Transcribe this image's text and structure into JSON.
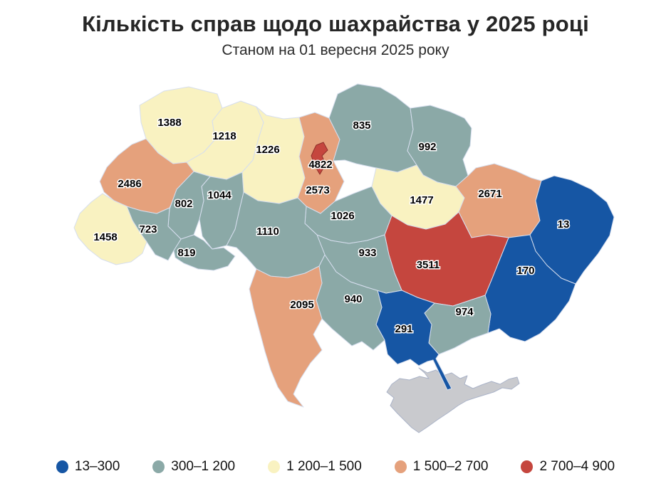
{
  "chart_data": {
    "type": "choropleth",
    "title": "Кількість справ щодо шахрайства у 2025 році",
    "subtitle": "Станом на 01 вересня 2025 року",
    "legend": [
      {
        "label": "13–300",
        "color": "#1656a4"
      },
      {
        "label": "300–1 200",
        "color": "#8ba9a7"
      },
      {
        "label": "1 200–1 500",
        "color": "#f9f2c1"
      },
      {
        "label": "1 500–2 700",
        "color": "#e5a17c"
      },
      {
        "label": "2 700–4 900",
        "color": "#c5463e"
      }
    ],
    "no_data_color": "#c9cace",
    "regions": [
      {
        "id": "volyn",
        "value": 1388,
        "bucket": 2
      },
      {
        "id": "rivne",
        "value": 1218,
        "bucket": 2
      },
      {
        "id": "zhytomyr",
        "value": 1226,
        "bucket": 2
      },
      {
        "id": "kyiv-oblast",
        "value": 2573,
        "bucket": 3
      },
      {
        "id": "kyiv-city",
        "value": 4822,
        "bucket": 4
      },
      {
        "id": "chernihiv",
        "value": 835,
        "bucket": 1
      },
      {
        "id": "sumy",
        "value": 992,
        "bucket": 1
      },
      {
        "id": "poltava",
        "value": 1477,
        "bucket": 2
      },
      {
        "id": "kharkiv",
        "value": 2671,
        "bucket": 3
      },
      {
        "id": "luhansk",
        "value": 13,
        "bucket": 0
      },
      {
        "id": "donetsk",
        "value": 170,
        "bucket": 0
      },
      {
        "id": "dnipropetrovsk",
        "value": 3511,
        "bucket": 4
      },
      {
        "id": "zaporizhzhia",
        "value": 974,
        "bucket": 1
      },
      {
        "id": "kherson",
        "value": 291,
        "bucket": 0
      },
      {
        "id": "mykolaiv",
        "value": 940,
        "bucket": 1
      },
      {
        "id": "odesa",
        "value": 2095,
        "bucket": 3
      },
      {
        "id": "kirovohrad",
        "value": 933,
        "bucket": 1
      },
      {
        "id": "cherkasy",
        "value": 1026,
        "bucket": 1
      },
      {
        "id": "vinnytsia",
        "value": 1110,
        "bucket": 1
      },
      {
        "id": "khmelnytskyi",
        "value": 1044,
        "bucket": 1
      },
      {
        "id": "ternopil",
        "value": 802,
        "bucket": 1
      },
      {
        "id": "chernivtsi",
        "value": 819,
        "bucket": 1
      },
      {
        "id": "ivano-frankivsk",
        "value": 723,
        "bucket": 1
      },
      {
        "id": "lviv",
        "value": 2486,
        "bucket": 3
      },
      {
        "id": "zakarpattia",
        "value": 1458,
        "bucket": 2
      }
    ],
    "no_data_regions": [
      {
        "id": "crimea"
      }
    ]
  }
}
